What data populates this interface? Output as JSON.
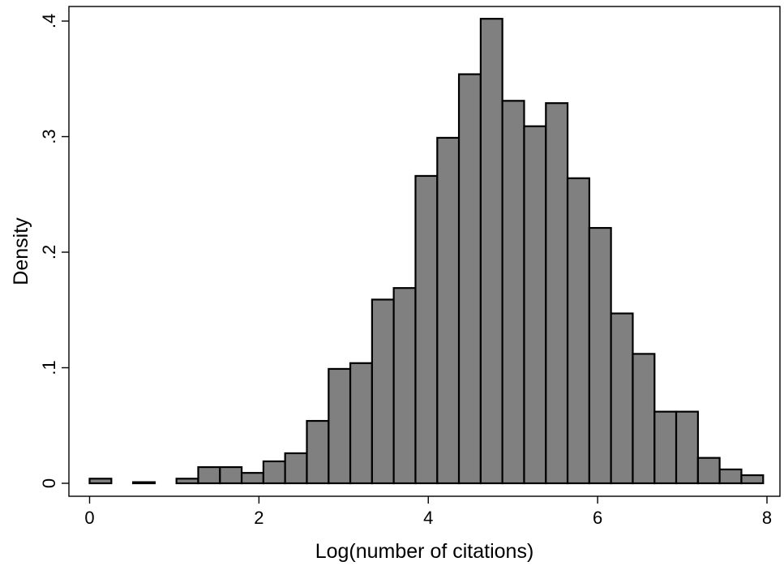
{
  "chart_data": {
    "type": "bar",
    "subtype": "histogram",
    "xlabel": "Log(number of citations)",
    "ylabel": "Density",
    "xlim": [
      0,
      8
    ],
    "ylim": [
      0,
      0.4
    ],
    "x_ticks": [
      0,
      2,
      4,
      6,
      8
    ],
    "x_tick_labels": [
      "0",
      "2",
      "4",
      "6",
      "8"
    ],
    "y_ticks": [
      0,
      0.1,
      0.2,
      0.3,
      0.4
    ],
    "y_tick_labels": [
      "0",
      ".1",
      ".2",
      ".3",
      ".4"
    ],
    "bin_width": 0.2566,
    "bins": [
      {
        "x0": 0.0,
        "x1": 0.257,
        "value": 0.004
      },
      {
        "x0": 0.513,
        "x1": 0.77,
        "value": 0.001
      },
      {
        "x0": 1.026,
        "x1": 1.283,
        "value": 0.004
      },
      {
        "x0": 1.283,
        "x1": 1.54,
        "value": 0.014
      },
      {
        "x0": 1.54,
        "x1": 1.796,
        "value": 0.014
      },
      {
        "x0": 1.796,
        "x1": 2.053,
        "value": 0.009
      },
      {
        "x0": 2.053,
        "x1": 2.309,
        "value": 0.019
      },
      {
        "x0": 2.309,
        "x1": 2.566,
        "value": 0.026
      },
      {
        "x0": 2.566,
        "x1": 2.823,
        "value": 0.054
      },
      {
        "x0": 2.823,
        "x1": 3.079,
        "value": 0.099
      },
      {
        "x0": 3.079,
        "x1": 3.336,
        "value": 0.104
      },
      {
        "x0": 3.336,
        "x1": 3.592,
        "value": 0.159
      },
      {
        "x0": 3.592,
        "x1": 3.849,
        "value": 0.169
      },
      {
        "x0": 3.849,
        "x1": 4.106,
        "value": 0.266
      },
      {
        "x0": 4.106,
        "x1": 4.362,
        "value": 0.299
      },
      {
        "x0": 4.362,
        "x1": 4.619,
        "value": 0.354
      },
      {
        "x0": 4.619,
        "x1": 4.875,
        "value": 0.402
      },
      {
        "x0": 4.875,
        "x1": 5.132,
        "value": 0.331
      },
      {
        "x0": 5.132,
        "x1": 5.389,
        "value": 0.309
      },
      {
        "x0": 5.389,
        "x1": 5.645,
        "value": 0.329
      },
      {
        "x0": 5.645,
        "x1": 5.902,
        "value": 0.264
      },
      {
        "x0": 5.902,
        "x1": 6.158,
        "value": 0.221
      },
      {
        "x0": 6.158,
        "x1": 6.415,
        "value": 0.147
      },
      {
        "x0": 6.415,
        "x1": 6.672,
        "value": 0.112
      },
      {
        "x0": 6.672,
        "x1": 6.928,
        "value": 0.062
      },
      {
        "x0": 6.928,
        "x1": 7.185,
        "value": 0.062
      },
      {
        "x0": 7.185,
        "x1": 7.441,
        "value": 0.022
      },
      {
        "x0": 7.441,
        "x1": 7.698,
        "value": 0.012
      },
      {
        "x0": 7.698,
        "x1": 7.955,
        "value": 0.007
      }
    ],
    "grid": false,
    "legend": "none",
    "colors": {
      "bar_fill": "#808080",
      "bar_stroke": "#000000",
      "axis": "#000000",
      "background": "#ffffff"
    }
  }
}
